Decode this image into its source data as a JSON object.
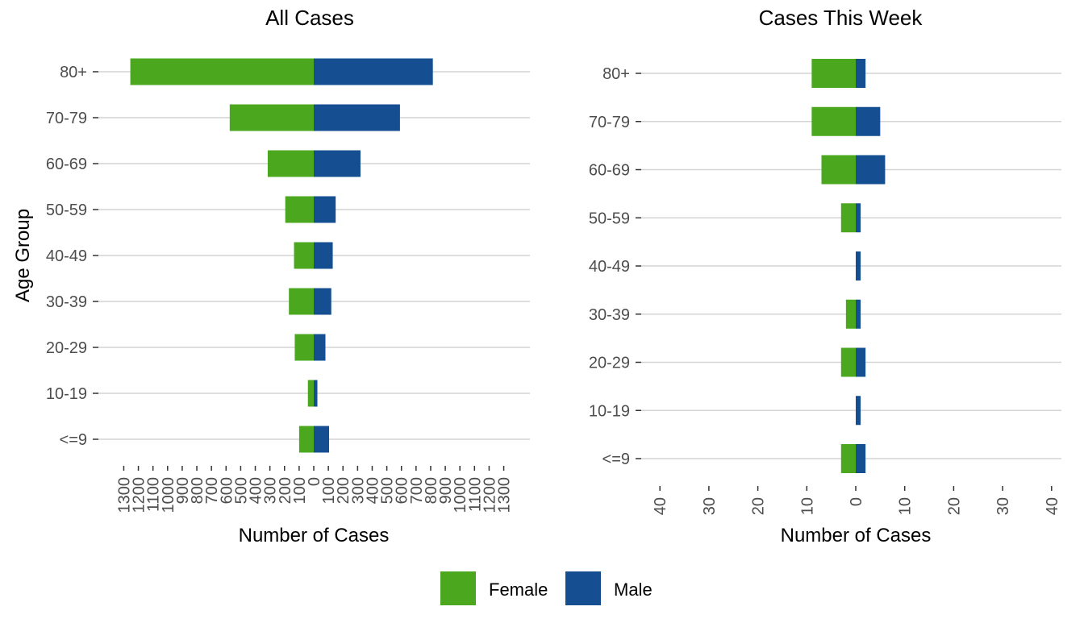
{
  "chart_data": [
    {
      "type": "bar",
      "orientation": "horizontal-diverging",
      "title": "All Cases",
      "xlabel": "Number of Cases",
      "ylabel": "Age Group",
      "categories": [
        "<=9",
        "10-19",
        "20-29",
        "30-39",
        "40-49",
        "50-59",
        "60-69",
        "70-79",
        "80+"
      ],
      "series": [
        {
          "name": "Female",
          "values": [
            100,
            40,
            130,
            170,
            135,
            195,
            315,
            575,
            1255
          ]
        },
        {
          "name": "Male",
          "values": [
            105,
            25,
            80,
            120,
            130,
            150,
            320,
            590,
            815
          ]
        }
      ],
      "xlim": [
        -1300,
        1300
      ],
      "xticks": [
        "1300",
        "1200",
        "1100",
        "1000",
        "900",
        "800",
        "700",
        "600",
        "500",
        "400",
        "300",
        "200",
        "100",
        "0",
        "100",
        "200",
        "300",
        "400",
        "500",
        "600",
        "700",
        "800",
        "900",
        "1000",
        "1100",
        "1200",
        "1300"
      ],
      "grid": "horizontal"
    },
    {
      "type": "bar",
      "orientation": "horizontal-diverging",
      "title": "Cases This Week",
      "xlabel": "Number of Cases",
      "ylabel": "",
      "categories": [
        "<=9",
        "10-19",
        "20-29",
        "30-39",
        "40-49",
        "50-59",
        "60-69",
        "70-79",
        "80+"
      ],
      "series": [
        {
          "name": "Female",
          "values": [
            3,
            0,
            3,
            2,
            0,
            3,
            7,
            9,
            9
          ]
        },
        {
          "name": "Male",
          "values": [
            2,
            1,
            2,
            1,
            1,
            1,
            6,
            5,
            2
          ]
        }
      ],
      "xlim": [
        -40,
        40
      ],
      "xticks": [
        "40",
        "30",
        "20",
        "10",
        "0",
        "10",
        "20",
        "30",
        "40"
      ],
      "grid": "horizontal"
    }
  ],
  "legend": {
    "items": [
      {
        "label": "Female",
        "color": "#4aa71e"
      },
      {
        "label": "Male",
        "color": "#164f91"
      }
    ],
    "placement": "bottom"
  },
  "colors": {
    "female": "#4aa71e",
    "male": "#164f91",
    "grid": "#d4d4d4",
    "tick": "#333333"
  }
}
